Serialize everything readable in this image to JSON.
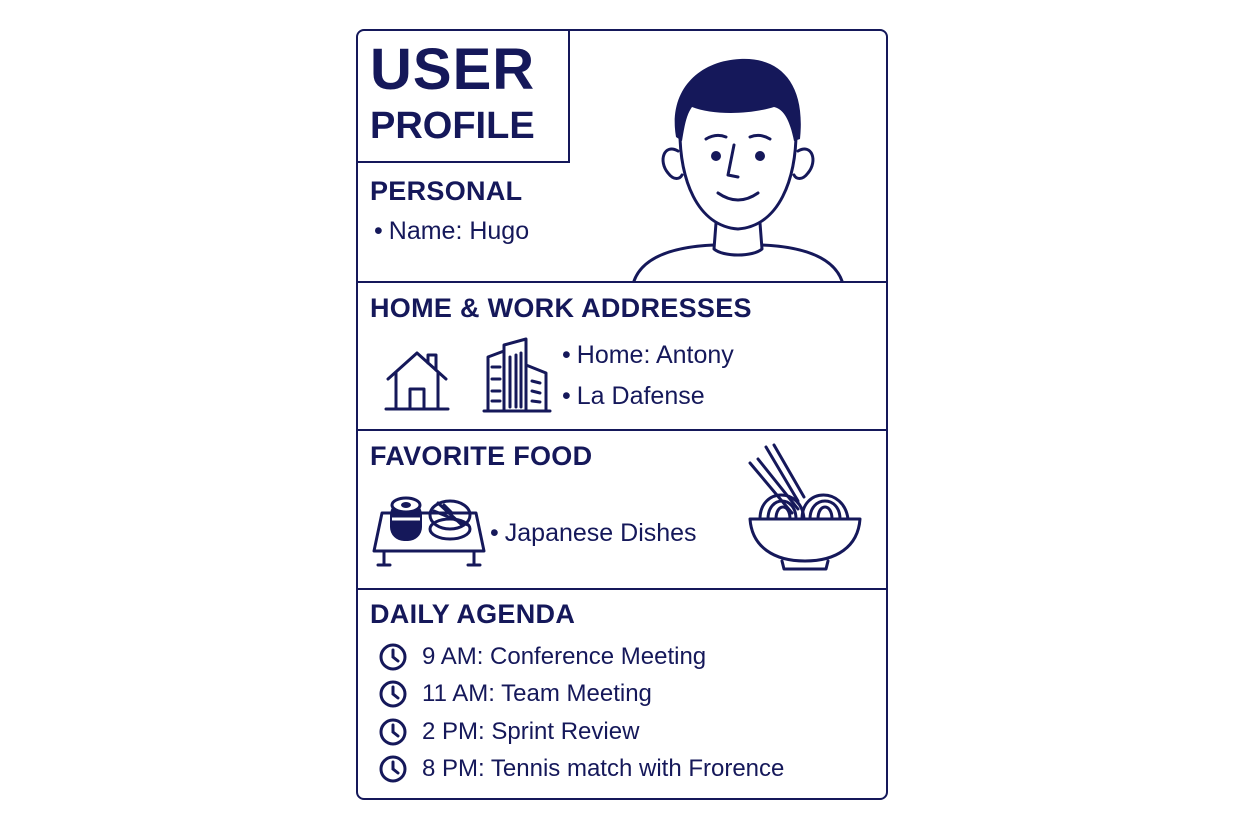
{
  "title": {
    "line1": "USER",
    "line2": "PROFILE"
  },
  "personal": {
    "heading": "PERSONAL",
    "name_item": "Name: Hugo"
  },
  "addresses": {
    "heading": "HOME & WORK ADDRESSES",
    "home": "Home: Antony",
    "work": "La Dafense"
  },
  "food": {
    "heading": "FAVORITE FOOD",
    "item": "Japanese Dishes"
  },
  "agenda": {
    "heading": "DAILY AGENDA",
    "items": [
      "9 AM: Conference Meeting",
      "11 AM: Team Meeting",
      "2 PM: Sprint Review",
      "8 PM: Tennis match with Frorence"
    ]
  },
  "icons": {
    "avatar": "user-avatar",
    "house": "house-icon",
    "buildings": "office-buildings-icon",
    "sushi": "sushi-tray-icon",
    "ramen": "ramen-bowl-icon",
    "clock": "clock-icon"
  },
  "colors": {
    "ink": "#15185a",
    "background": "#ffffff"
  }
}
